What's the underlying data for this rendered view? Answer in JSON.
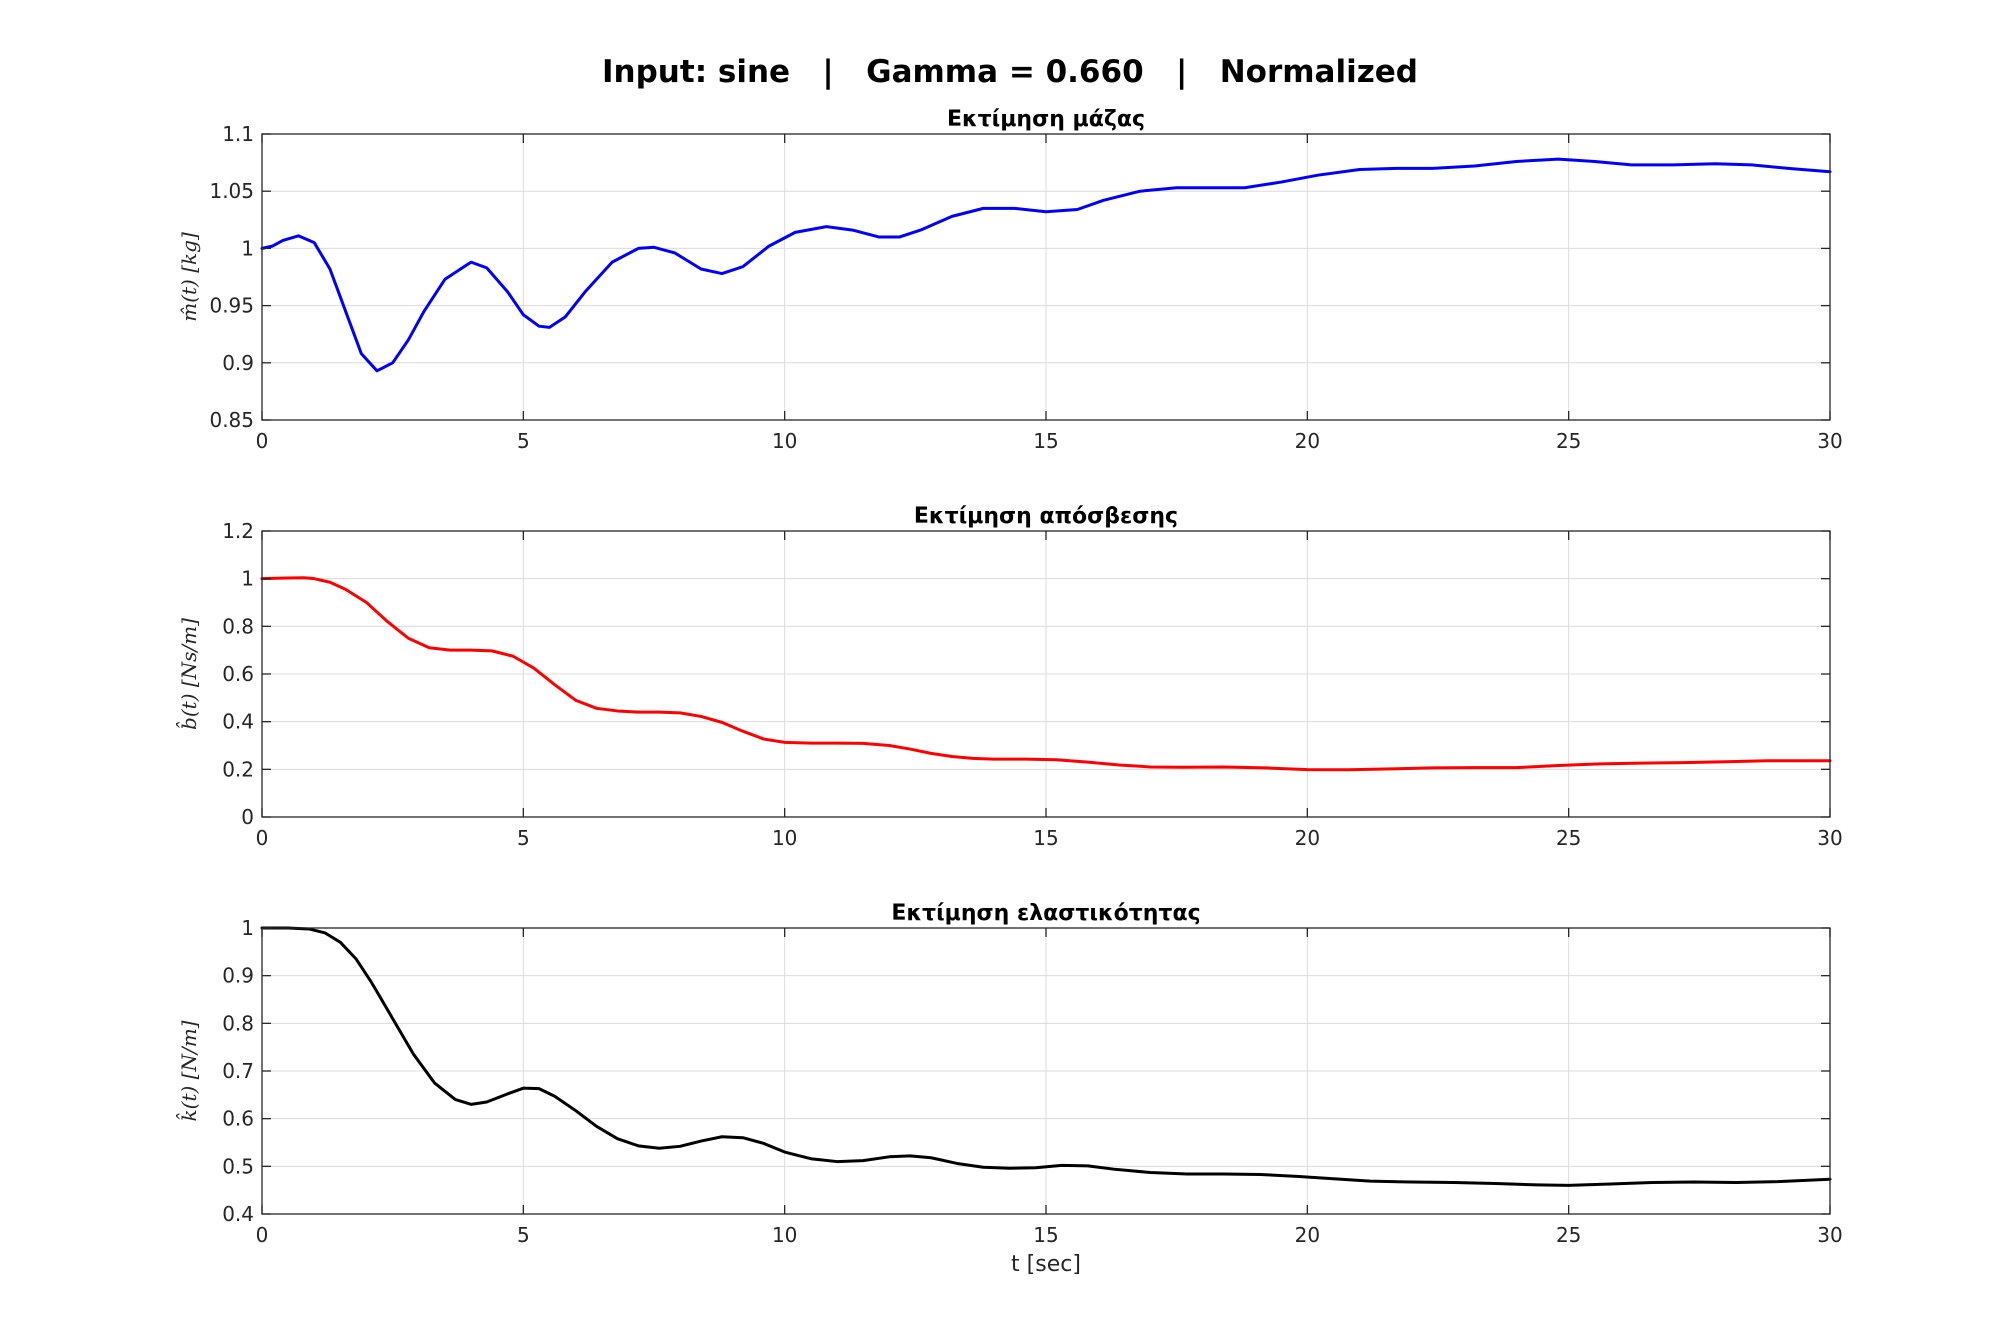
{
  "figure": {
    "title": "Input: sine   |   Gamma = 0.660   |   Normalized",
    "xlabel": "t [sec]"
  },
  "chart_data": [
    {
      "type": "line",
      "title": "Εκτίμηση μάζας",
      "ylabel": "m̂(t) [kg]",
      "xlim": [
        0,
        30
      ],
      "ylim": [
        0.85,
        1.1
      ],
      "xticks": [
        0,
        5,
        10,
        15,
        20,
        25,
        30
      ],
      "yticks": [
        0.85,
        0.9,
        0.95,
        1,
        1.05,
        1.1
      ],
      "ytick_labels": [
        "0.85",
        "0.9",
        "0.95",
        "1",
        "1.05",
        "1.1"
      ],
      "grid": true,
      "series": [
        {
          "color": "#0000ff",
          "x": [
            0,
            0.2,
            0.4,
            0.7,
            1.0,
            1.3,
            1.6,
            1.9,
            2.2,
            2.5,
            2.8,
            3.1,
            3.5,
            4.0,
            4.3,
            4.7,
            5.0,
            5.3,
            5.5,
            5.8,
            6.2,
            6.7,
            7.2,
            7.5,
            7.9,
            8.4,
            8.8,
            9.2,
            9.7,
            10.2,
            10.8,
            11.3,
            11.8,
            12.2,
            12.6,
            13.2,
            13.8,
            14.4,
            15.0,
            15.6,
            16.1,
            16.8,
            17.5,
            18.2,
            18.8,
            19.5,
            20.2,
            21.0,
            21.7,
            22.4,
            23.2,
            24.0,
            24.8,
            25.5,
            26.2,
            27.0,
            27.8,
            28.5,
            29.2,
            30.0
          ],
          "y": [
            1.0,
            1.002,
            1.007,
            1.011,
            1.005,
            0.982,
            0.945,
            0.908,
            0.893,
            0.9,
            0.92,
            0.945,
            0.973,
            0.988,
            0.983,
            0.962,
            0.942,
            0.932,
            0.931,
            0.94,
            0.963,
            0.988,
            1.0,
            1.001,
            0.996,
            0.982,
            0.978,
            0.984,
            1.002,
            1.014,
            1.019,
            1.016,
            1.01,
            1.01,
            1.016,
            1.028,
            1.035,
            1.035,
            1.032,
            1.034,
            1.042,
            1.05,
            1.053,
            1.053,
            1.053,
            1.058,
            1.064,
            1.069,
            1.07,
            1.07,
            1.072,
            1.076,
            1.078,
            1.076,
            1.073,
            1.073,
            1.074,
            1.073,
            1.07,
            1.067
          ]
        }
      ]
    },
    {
      "type": "line",
      "title": "Εκτίμηση απόσβεσης",
      "ylabel": "b̂(t) [Ns/m]",
      "xlim": [
        0,
        30
      ],
      "ylim": [
        0,
        1.2
      ],
      "xticks": [
        0,
        5,
        10,
        15,
        20,
        25,
        30
      ],
      "yticks": [
        0,
        0.2,
        0.4,
        0.6,
        0.8,
        1,
        1.2
      ],
      "ytick_labels": [
        "0",
        "0.2",
        "0.4",
        "0.6",
        "0.8",
        "1",
        "1.2"
      ],
      "grid": true,
      "series": [
        {
          "color": "#ff0000",
          "x": [
            0,
            0.5,
            0.8,
            1.0,
            1.3,
            1.6,
            2.0,
            2.4,
            2.8,
            3.2,
            3.6,
            4.0,
            4.4,
            4.8,
            5.2,
            5.6,
            6.0,
            6.4,
            6.8,
            7.2,
            7.6,
            8.0,
            8.4,
            8.8,
            9.2,
            9.6,
            10.0,
            10.5,
            11.0,
            11.5,
            12.0,
            12.4,
            12.8,
            13.2,
            13.6,
            14.0,
            14.6,
            15.2,
            15.8,
            16.4,
            17.0,
            17.6,
            18.4,
            19.2,
            20.0,
            20.8,
            21.6,
            22.4,
            23.2,
            24.0,
            24.8,
            25.6,
            26.4,
            27.2,
            28.0,
            28.8,
            30.0
          ],
          "y": [
            1.0,
            1.003,
            1.004,
            1.0,
            0.985,
            0.955,
            0.9,
            0.82,
            0.75,
            0.71,
            0.7,
            0.7,
            0.697,
            0.675,
            0.625,
            0.555,
            0.49,
            0.456,
            0.445,
            0.44,
            0.44,
            0.437,
            0.422,
            0.397,
            0.36,
            0.327,
            0.313,
            0.31,
            0.31,
            0.309,
            0.3,
            0.285,
            0.267,
            0.254,
            0.246,
            0.243,
            0.243,
            0.24,
            0.23,
            0.218,
            0.21,
            0.209,
            0.21,
            0.206,
            0.199,
            0.198,
            0.202,
            0.206,
            0.207,
            0.207,
            0.216,
            0.223,
            0.226,
            0.228,
            0.232,
            0.236,
            0.236
          ]
        }
      ]
    },
    {
      "type": "line",
      "title": "Εκτίμηση ελαστικότητας",
      "ylabel": "k̂(t) [N/m]",
      "xlim": [
        0,
        30
      ],
      "ylim": [
        0.4,
        1
      ],
      "xticks": [
        0,
        5,
        10,
        15,
        20,
        25,
        30
      ],
      "yticks": [
        0.4,
        0.5,
        0.6,
        0.7,
        0.8,
        0.9,
        1
      ],
      "ytick_labels": [
        "0.4",
        "0.5",
        "0.6",
        "0.7",
        "0.8",
        "0.9",
        "1"
      ],
      "grid": true,
      "series": [
        {
          "color": "#000000",
          "x": [
            0,
            0.5,
            0.9,
            1.2,
            1.5,
            1.8,
            2.1,
            2.5,
            2.9,
            3.3,
            3.7,
            4.0,
            4.3,
            4.7,
            5.0,
            5.3,
            5.6,
            6.0,
            6.4,
            6.8,
            7.2,
            7.6,
            8.0,
            8.4,
            8.8,
            9.2,
            9.6,
            10.0,
            10.5,
            11.0,
            11.5,
            12.0,
            12.4,
            12.8,
            13.3,
            13.8,
            14.3,
            14.8,
            15.3,
            15.8,
            16.3,
            17.0,
            17.7,
            18.4,
            19.1,
            19.8,
            20.5,
            21.2,
            22.0,
            22.8,
            23.6,
            24.4,
            25.0,
            25.8,
            26.6,
            27.4,
            28.2,
            29.0,
            30.0
          ],
          "y": [
            1.0,
            1.0,
            0.998,
            0.99,
            0.97,
            0.935,
            0.885,
            0.81,
            0.735,
            0.675,
            0.64,
            0.63,
            0.635,
            0.652,
            0.664,
            0.663,
            0.647,
            0.617,
            0.584,
            0.558,
            0.543,
            0.538,
            0.542,
            0.553,
            0.562,
            0.56,
            0.548,
            0.53,
            0.516,
            0.51,
            0.512,
            0.52,
            0.522,
            0.518,
            0.506,
            0.498,
            0.496,
            0.497,
            0.502,
            0.501,
            0.494,
            0.487,
            0.484,
            0.484,
            0.483,
            0.479,
            0.474,
            0.469,
            0.467,
            0.466,
            0.464,
            0.461,
            0.46,
            0.463,
            0.466,
            0.467,
            0.466,
            0.468,
            0.473
          ]
        }
      ]
    }
  ]
}
